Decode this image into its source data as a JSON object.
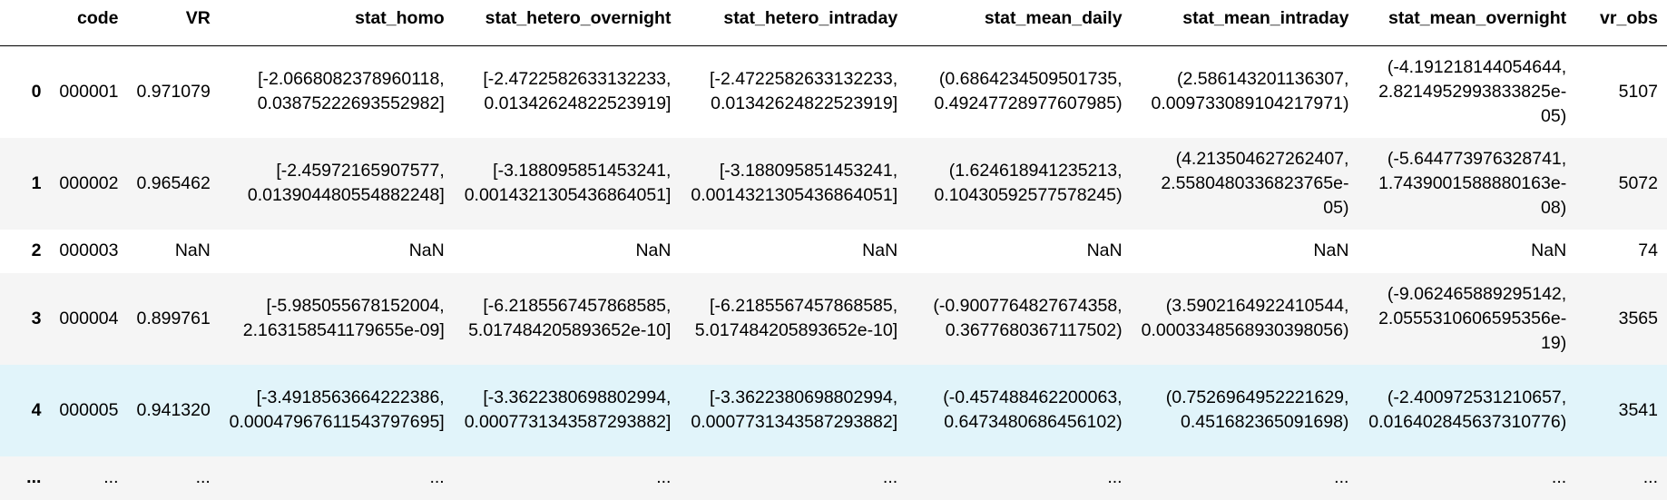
{
  "columns": [
    "",
    "code",
    "VR",
    "stat_homo",
    "stat_hetero_overnight",
    "stat_hetero_intraday",
    "stat_mean_daily",
    "stat_mean_intraday",
    "stat_mean_overnight",
    "vr_obs"
  ],
  "rows": [
    {
      "index": "0",
      "code": "000001",
      "VR": "0.971079",
      "stat_homo": "[-2.0668082378960118, 0.03875222693552982]",
      "stat_hetero_overnight": "[-2.4722582633132233, 0.01342624822523919]",
      "stat_hetero_intraday": "[-2.4722582633132233, 0.01342624822523919]",
      "stat_mean_daily": "(0.6864234509501735, 0.49247728977607985)",
      "stat_mean_intraday": "(2.586143201136307, 0.009733089104217971)",
      "stat_mean_overnight": "(-4.191218144054644, 2.8214952993833825e-05)",
      "vr_obs": "5107"
    },
    {
      "index": "1",
      "code": "000002",
      "VR": "0.965462",
      "stat_homo": "[-2.45972165907577, 0.013904480554882248]",
      "stat_hetero_overnight": "[-3.188095851453241, 0.0014321305436864051]",
      "stat_hetero_intraday": "[-3.188095851453241, 0.0014321305436864051]",
      "stat_mean_daily": "(1.624618941235213, 0.10430592577578245)",
      "stat_mean_intraday": "(4.213504627262407, 2.5580480336823765e-05)",
      "stat_mean_overnight": "(-5.644773976328741, 1.7439001588880163e-08)",
      "vr_obs": "5072"
    },
    {
      "index": "2",
      "code": "000003",
      "VR": "NaN",
      "stat_homo": "NaN",
      "stat_hetero_overnight": "NaN",
      "stat_hetero_intraday": "NaN",
      "stat_mean_daily": "NaN",
      "stat_mean_intraday": "NaN",
      "stat_mean_overnight": "NaN",
      "vr_obs": "74"
    },
    {
      "index": "3",
      "code": "000004",
      "VR": "0.899761",
      "stat_homo": "[-5.985055678152004, 2.163158541179655e-09]",
      "stat_hetero_overnight": "[-6.2185567457868585, 5.017484205893652e-10]",
      "stat_hetero_intraday": "[-6.2185567457868585, 5.017484205893652e-10]",
      "stat_mean_daily": "(-0.9007764827674358, 0.3677680367117502)",
      "stat_mean_intraday": "(3.5902164922410544, 0.0003348568930398056)",
      "stat_mean_overnight": "(-9.062465889295142, 2.0555310606595356e-19)",
      "vr_obs": "3565"
    },
    {
      "index": "4",
      "code": "000005",
      "VR": "0.941320",
      "stat_homo": "[-3.4918563664222386, 0.00047967611543797695]",
      "stat_hetero_overnight": "[-3.3622380698802994, 0.0007731343587293882]",
      "stat_hetero_intraday": "[-3.3622380698802994, 0.0007731343587293882]",
      "stat_mean_daily": "(-0.457488462200063, 0.6473480686456102)",
      "stat_mean_intraday": "(0.7526964952221629, 0.451682365091698)",
      "stat_mean_overnight": "(-2.400972531210657, 0.016402845637310776)",
      "vr_obs": "3541"
    },
    {
      "index": "...",
      "code": "...",
      "VR": "...",
      "stat_homo": "...",
      "stat_hetero_overnight": "...",
      "stat_hetero_intraday": "...",
      "stat_mean_daily": "...",
      "stat_mean_intraday": "...",
      "stat_mean_overnight": "...",
      "vr_obs": "..."
    }
  ]
}
